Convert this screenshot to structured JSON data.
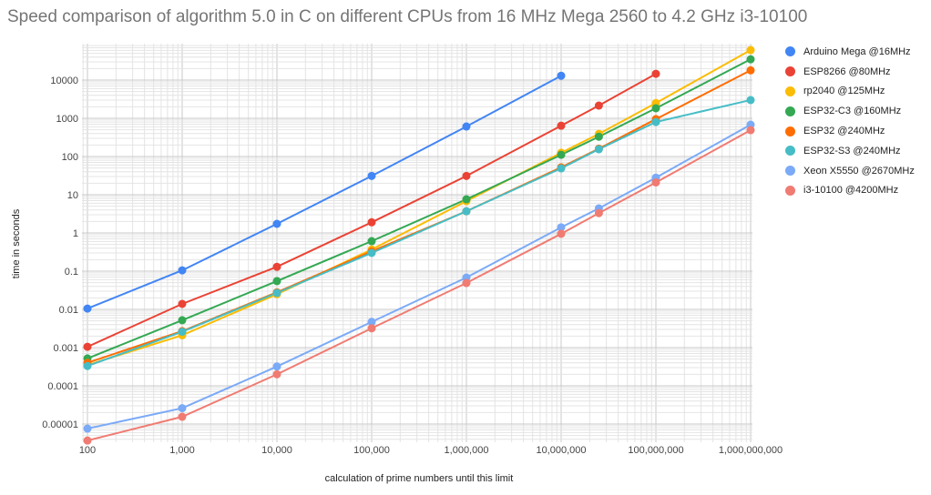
{
  "chart_data": {
    "type": "line",
    "title": "Speed comparison of algorithm 5.0 in C on different CPUs from 16 MHz Mega 2560 to 4.2 GHz i3-10100",
    "xlabel": "calculation of prime numbers until this limit",
    "ylabel": "time in seconds",
    "x_scale": "log",
    "y_scale": "log",
    "grid": true,
    "legend_position": "right",
    "x_ticks": [
      "100",
      "1,000",
      "10,000",
      "100,000",
      "1,000,000",
      "10,000,000",
      "100,000,000",
      "1,000,000,000"
    ],
    "y_ticks": [
      "10000",
      "1000",
      "100",
      "10",
      "1",
      "0.1",
      "0.01",
      "0.001",
      "0.0001",
      "0.00001"
    ],
    "xlim": [
      100,
      1000000000
    ],
    "ylim": [
      3.5e-06,
      89000
    ],
    "x": [
      100,
      1000,
      10000,
      100000,
      1000000,
      10000000,
      25000000,
      100000000,
      1000000000
    ],
    "series": [
      {
        "name": "Arduino Mega @16MHz",
        "color": "#4285f4",
        "values": [
          0.0105,
          0.105,
          1.73,
          31,
          610,
          13000,
          null,
          null,
          null
        ]
      },
      {
        "name": "ESP8266 @80MHz",
        "color": "#ea4335",
        "values": [
          0.00105,
          0.0139,
          0.13,
          1.9,
          31,
          640,
          2150,
          14600,
          null
        ]
      },
      {
        "name": "rp2040 @125MHz",
        "color": "#fbbc04",
        "values": [
          0.00035,
          0.0021,
          0.025,
          0.37,
          6.8,
          125,
          390,
          2500,
          61000
        ]
      },
      {
        "name": "ESP32-C3 @160MHz",
        "color": "#34a853",
        "values": [
          0.00052,
          0.0052,
          0.055,
          0.61,
          7.6,
          111,
          330,
          1830,
          35000
        ]
      },
      {
        "name": "ESP32 @240MHz",
        "color": "#ff6d01",
        "values": [
          0.0004,
          0.0027,
          0.028,
          0.33,
          3.7,
          52,
          160,
          950,
          18000
        ]
      },
      {
        "name": "ESP32-S3 @240MHz",
        "color": "#46bdc6",
        "values": [
          0.00033,
          0.0026,
          0.027,
          0.3,
          3.7,
          49,
          155,
          800,
          3000
        ]
      },
      {
        "name": "Xeon X5550 @2670MHz",
        "color": "#7baaf7",
        "values": [
          7.6e-06,
          2.6e-05,
          0.00032,
          0.0047,
          0.068,
          1.4,
          4.4,
          28,
          680
        ]
      },
      {
        "name": "i3-10100 @4200MHz",
        "color": "#f07b72",
        "values": [
          3.7e-06,
          1.55e-05,
          0.0002,
          0.0032,
          0.049,
          0.95,
          3.3,
          21,
          490
        ]
      }
    ]
  }
}
